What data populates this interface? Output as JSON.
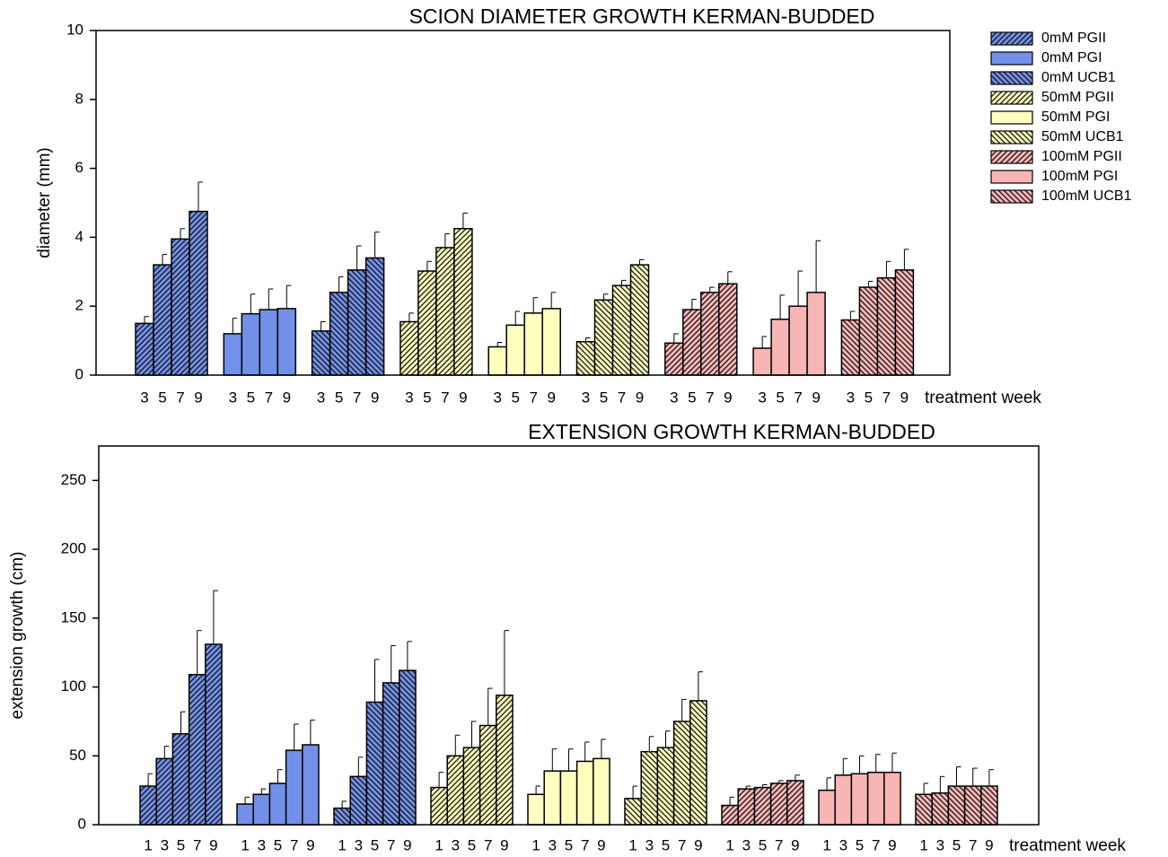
{
  "legend": [
    {
      "name": "0mM PGII",
      "color": "#7390e8",
      "hatch": "forward"
    },
    {
      "name": "0mM PGI",
      "color": "#7390e8",
      "hatch": "none"
    },
    {
      "name": "0mM UCB1",
      "color": "#7390e8",
      "hatch": "back"
    },
    {
      "name": "50mM PGII",
      "color": "#ffffbf",
      "hatch": "forward"
    },
    {
      "name": "50mM PGI",
      "color": "#ffffbf",
      "hatch": "none"
    },
    {
      "name": "50mM UCB1",
      "color": "#ffffbf",
      "hatch": "back"
    },
    {
      "name": "100mM PGII",
      "color": "#f7b5b5",
      "hatch": "forward"
    },
    {
      "name": "100mM PGI",
      "color": "#f7b5b5",
      "hatch": "none"
    },
    {
      "name": "100mM UCB1",
      "color": "#f7b5b5",
      "hatch": "back"
    }
  ],
  "chart_data": [
    {
      "type": "bar",
      "title": "SCION DIAMETER GROWTH KERMAN-BUDDED",
      "ylabel": "diameter (mm)",
      "xlabel": "treatment week",
      "categories": [
        "3",
        "5",
        "7",
        "9"
      ],
      "ylim": [
        0,
        10
      ],
      "yticks": [
        0,
        2,
        4,
        6,
        8,
        10
      ],
      "series": [
        {
          "values": [
            1.5,
            3.2,
            3.95,
            4.75
          ],
          "errors": [
            0.2,
            0.3,
            0.3,
            0.85
          ]
        },
        {
          "values": [
            1.2,
            1.78,
            1.9,
            1.93
          ],
          "errors": [
            0.45,
            0.57,
            0.6,
            0.67
          ]
        },
        {
          "values": [
            1.28,
            2.4,
            3.05,
            3.4
          ],
          "errors": [
            0.27,
            0.45,
            0.7,
            0.75
          ]
        },
        {
          "values": [
            1.55,
            3.02,
            3.7,
            4.25
          ],
          "errors": [
            0.25,
            0.28,
            0.4,
            0.45
          ]
        },
        {
          "values": [
            0.82,
            1.45,
            1.8,
            1.93
          ],
          "errors": [
            0.13,
            0.4,
            0.45,
            0.47
          ]
        },
        {
          "values": [
            0.97,
            2.18,
            2.6,
            3.2
          ],
          "errors": [
            0.11,
            0.17,
            0.15,
            0.15
          ]
        },
        {
          "values": [
            0.93,
            1.9,
            2.4,
            2.65
          ],
          "errors": [
            0.27,
            0.3,
            0.15,
            0.35
          ]
        },
        {
          "values": [
            0.78,
            1.62,
            2.0,
            2.4
          ],
          "errors": [
            0.34,
            0.7,
            1.02,
            1.5
          ]
        },
        {
          "values": [
            1.6,
            2.55,
            2.82,
            3.05
          ],
          "errors": [
            0.25,
            0.17,
            0.48,
            0.6
          ]
        }
      ]
    },
    {
      "type": "bar",
      "title": "EXTENSION GROWTH KERMAN-BUDDED",
      "ylabel": "extension growth (cm)",
      "xlabel": "treatment week",
      "categories": [
        "1",
        "3",
        "5",
        "7",
        "9"
      ],
      "ylim": [
        0,
        275
      ],
      "yticks": [
        0,
        50,
        100,
        150,
        200,
        250
      ],
      "series": [
        {
          "values": [
            28,
            48,
            66,
            109,
            131
          ],
          "errors": [
            9,
            9,
            16,
            32,
            39
          ]
        },
        {
          "values": [
            15,
            22,
            30,
            54,
            58
          ],
          "errors": [
            5,
            4,
            10,
            19,
            18
          ]
        },
        {
          "values": [
            12,
            35,
            89,
            103,
            112
          ],
          "errors": [
            5,
            14,
            31,
            27,
            21
          ]
        },
        {
          "values": [
            27,
            50,
            56,
            72,
            94
          ],
          "errors": [
            11,
            15,
            19,
            27,
            47
          ]
        },
        {
          "values": [
            22,
            39,
            39,
            46,
            48
          ],
          "errors": [
            6,
            16,
            16,
            14,
            14
          ]
        },
        {
          "values": [
            19,
            53,
            56,
            75,
            90
          ],
          "errors": [
            9,
            11,
            12,
            16,
            21
          ]
        },
        {
          "values": [
            14,
            26,
            27,
            30,
            32
          ],
          "errors": [
            6,
            2,
            2,
            2,
            4
          ]
        },
        {
          "values": [
            25,
            36,
            37,
            38,
            38
          ],
          "errors": [
            9,
            12,
            13,
            13,
            14
          ]
        },
        {
          "values": [
            22,
            23,
            28,
            28,
            28
          ],
          "errors": [
            8,
            12,
            14,
            13,
            12
          ]
        }
      ]
    }
  ]
}
